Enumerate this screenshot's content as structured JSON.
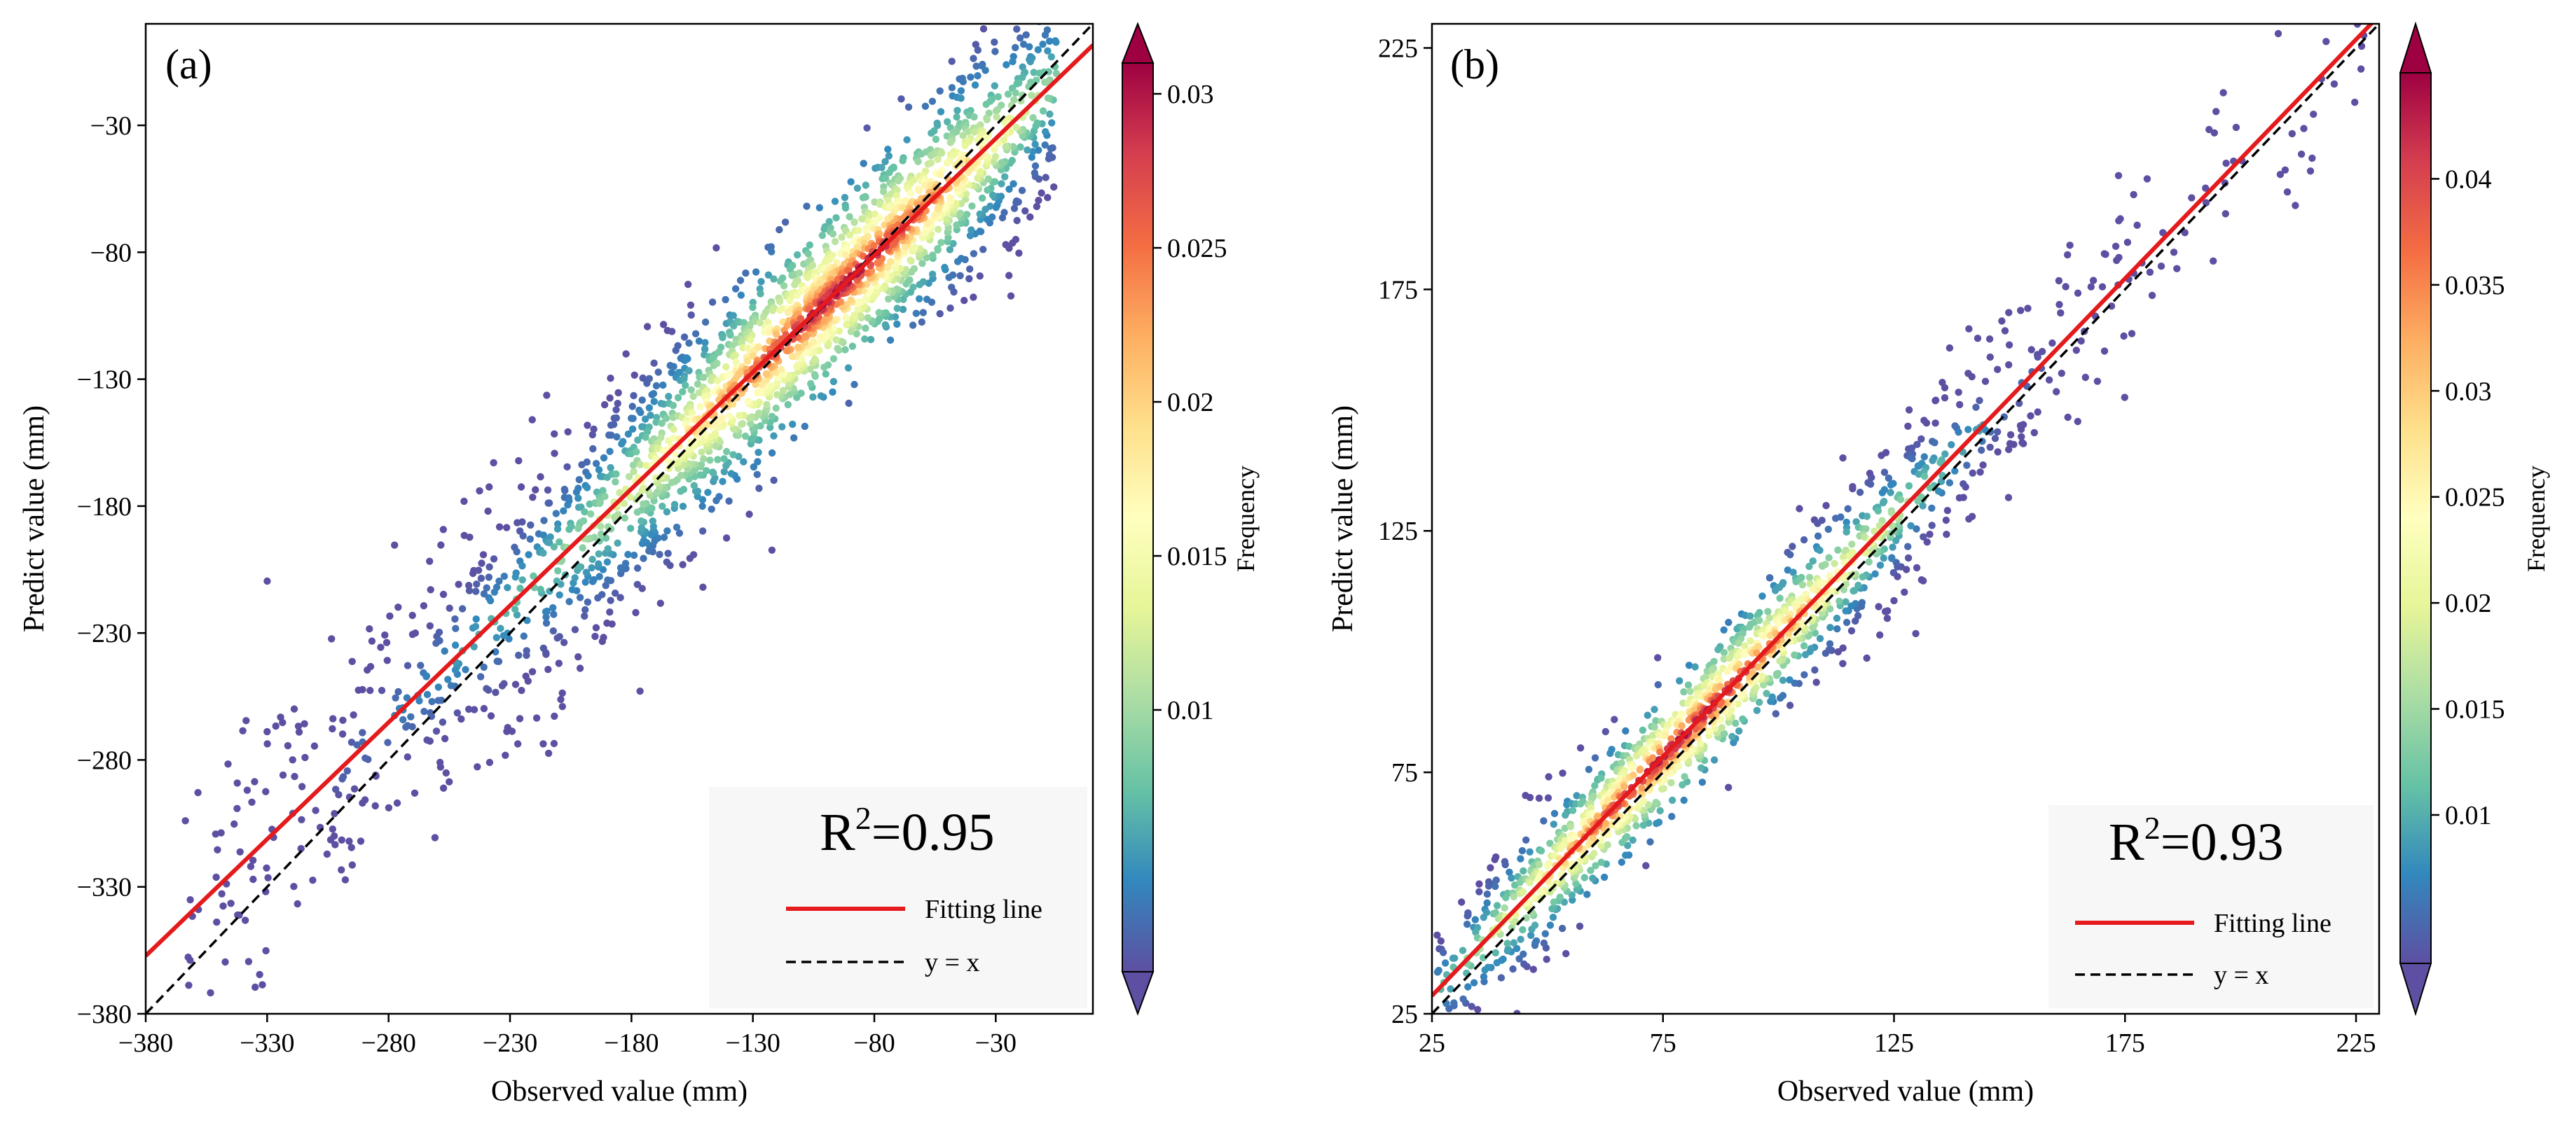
{
  "colormap": [
    "#5e4fa2",
    "#3288bd",
    "#66c2a5",
    "#abdda4",
    "#e6f598",
    "#ffffbf",
    "#fee08b",
    "#fdae61",
    "#f46d43",
    "#d53e4f",
    "#9e0142"
  ],
  "colors": {
    "fit_line": "#e41a1c",
    "identity_line": "#000000",
    "axis": "#000000",
    "legend_bg": "#f7f7f7"
  },
  "chart_data": [
    {
      "type": "scatter",
      "panel_label": "(a)",
      "xlabel": "Observed value (mm)",
      "ylabel": "Predict value (mm)",
      "xlim": [
        -380,
        10
      ],
      "ylim": [
        -380,
        10
      ],
      "xticks": [
        -380,
        -330,
        -280,
        -230,
        -180,
        -130,
        -80,
        -30
      ],
      "yticks": [
        -380,
        -330,
        -280,
        -230,
        -180,
        -130,
        -80,
        -30
      ],
      "xtick_labels": [
        "−380",
        "−330",
        "−280",
        "−230",
        "−180",
        "−130",
        "−80",
        "−30"
      ],
      "ytick_labels": [
        "−380",
        "−330",
        "−280",
        "−230",
        "−180",
        "−130",
        "−80",
        "−30"
      ],
      "r2_prefix": "R",
      "r2_exp": "2",
      "r2_value": "=0.95",
      "fit_line": {
        "slope": 0.92,
        "intercept": -7.6
      },
      "legend": {
        "fit_label": "Fitting line",
        "identity_label": "y = x",
        "position": "lower-right"
      },
      "colorbar": {
        "label": "Frequency",
        "range": [
          0.0015,
          0.031
        ],
        "ticks": [
          0.01,
          0.015,
          0.02,
          0.025,
          0.03
        ],
        "tick_labels": [
          "0.01",
          "0.015",
          "0.02",
          "0.025",
          "0.03"
        ],
        "extend": "both"
      },
      "density_model": {
        "centers": [
          -80,
          -120,
          -200,
          -270
        ],
        "center_weights": [
          1.0,
          0.45,
          0.22,
          0.1
        ],
        "spread": 55,
        "max_frequency": 0.031
      },
      "point_generation": {
        "n": 2400,
        "x_range": [
          -365,
          -5
        ],
        "x_mode": -80,
        "residual_sd": 22,
        "seed": 7
      }
    },
    {
      "type": "scatter",
      "panel_label": "(b)",
      "xlabel": "Observed value (mm)",
      "ylabel": "Predict value (mm)",
      "xlim": [
        25,
        230
      ],
      "ylim": [
        25,
        230
      ],
      "xticks": [
        25,
        75,
        125,
        175,
        225
      ],
      "yticks": [
        25,
        75,
        125,
        175,
        225
      ],
      "xtick_labels": [
        "25",
        "75",
        "125",
        "175",
        "225"
      ],
      "ytick_labels": [
        "25",
        "75",
        "125",
        "175",
        "225"
      ],
      "r2_prefix": "R",
      "r2_exp": "2",
      "r2_value": "=0.93",
      "fit_line": {
        "slope": 0.99,
        "intercept": 4.0
      },
      "legend": {
        "fit_label": "Fitting line",
        "identity_label": "y = x",
        "position": "lower-right"
      },
      "colorbar": {
        "label": "Frequency",
        "range": [
          0.003,
          0.045
        ],
        "ticks": [
          0.01,
          0.015,
          0.02,
          0.025,
          0.03,
          0.035,
          0.04
        ],
        "tick_labels": [
          "0.01",
          "0.015",
          "0.02",
          "0.025",
          "0.03",
          "0.035",
          "0.04"
        ],
        "extend": "both"
      },
      "density_model": {
        "centers": [
          68,
          90,
          120
        ],
        "center_weights": [
          1.0,
          0.55,
          0.28
        ],
        "spread": 28,
        "max_frequency": 0.045
      },
      "point_generation": {
        "n": 1500,
        "x_range": [
          26,
          228
        ],
        "x_mode": 70,
        "residual_sd": 8,
        "seed": 11
      }
    }
  ]
}
